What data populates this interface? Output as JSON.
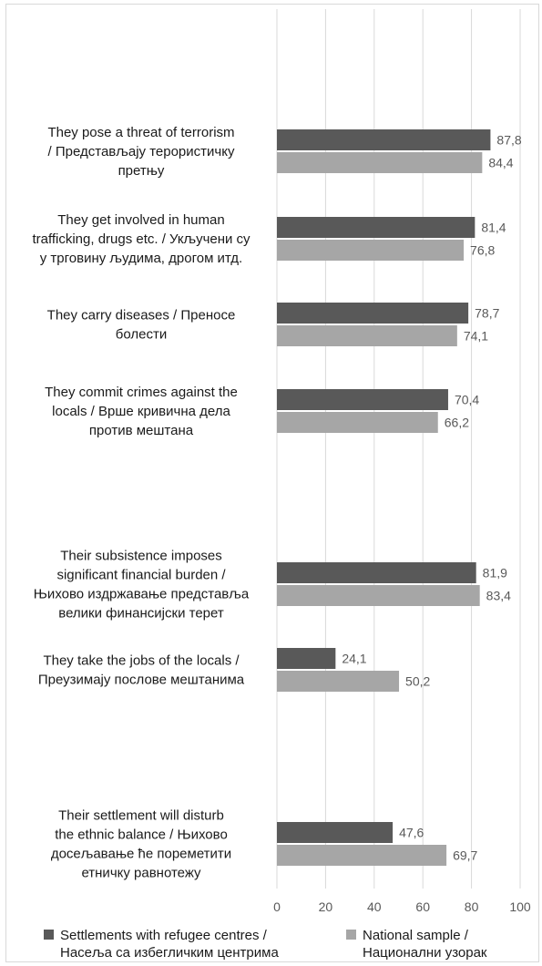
{
  "chart_data": {
    "type": "bar",
    "orientation": "horizontal",
    "categories": [
      [
        "They pose a threat of terrorism",
        "/ Представљају терористичку",
        "претњу"
      ],
      [
        "They get involved in human",
        "trafficking, drugs etc. / Укључени су",
        "у трговину људима, дрогом итд."
      ],
      [
        "They carry diseases / Преносе",
        "болести"
      ],
      [
        "They commit crimes against the",
        "locals / Врше кривична дела",
        "против мештана"
      ],
      [
        "Their subsistence imposes",
        "significant financial burden /",
        "Њихово издржавање представља",
        "велики финансијски терет"
      ],
      [
        "They take the jobs of the locals /",
        "Преузимају послове мештанима"
      ],
      [
        "Their settlement will disturb",
        "the ethnic balance / Њихово",
        "досељавање ће пореметити",
        "етничку равнотежу"
      ]
    ],
    "series": [
      {
        "name": [
          "Settlements with refugee centres /",
          "Насеља са избегличким центрима"
        ],
        "color": "#595959",
        "values": [
          87.8,
          81.4,
          78.7,
          70.4,
          81.9,
          24.1,
          47.6
        ],
        "labels": [
          "87,8",
          "81,4",
          "78,7",
          "70,4",
          "81,9",
          "24,1",
          "47,6"
        ]
      },
      {
        "name": [
          "National sample /",
          "Национални узорак"
        ],
        "color": "#a6a6a6",
        "values": [
          84.4,
          76.8,
          74.1,
          66.2,
          83.4,
          50.2,
          69.7
        ],
        "labels": [
          "84,4",
          "76,8",
          "74,1",
          "66,2",
          "83,4",
          "50,2",
          "69,7"
        ]
      }
    ],
    "xlim": [
      0,
      100
    ],
    "xticks": [
      "0",
      "20",
      "40",
      "60",
      "80",
      "100"
    ],
    "grid": "vertical",
    "legend": "bottom"
  }
}
